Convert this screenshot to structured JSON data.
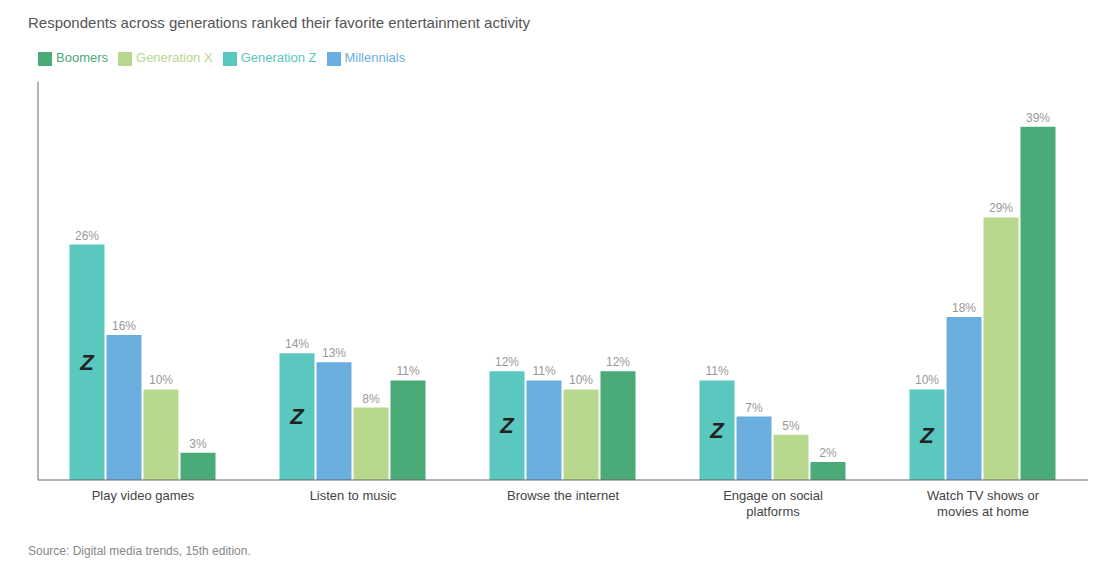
{
  "chart_data": {
    "type": "bar",
    "subtitle": "Respondents across generations ranked their favorite entertainment activity",
    "source": "Source: Digital media trends, 15th edition.",
    "categories": [
      "Play video games",
      "Listen to music",
      "Browse the internet",
      "Engage on social\nplatforms",
      "Watch TV shows or\nmovies at home"
    ],
    "series": [
      {
        "name": "Generation Z",
        "color": "#5bc8c0",
        "values": [
          26,
          14,
          12,
          11,
          10
        ],
        "value_labels": [
          "26%",
          "14%",
          "12%",
          "11%",
          "10%"
        ]
      },
      {
        "name": "Millennials",
        "color": "#6aaee0",
        "values": [
          16,
          13,
          11,
          7,
          18
        ],
        "value_labels": [
          "16%",
          "13%",
          "11%",
          "7%",
          "18%"
        ]
      },
      {
        "name": "Generation X",
        "color": "#b8d98d",
        "values": [
          10,
          8,
          10,
          5,
          29
        ],
        "value_labels": [
          "10%",
          "8%",
          "10%",
          "5%",
          "29%"
        ]
      },
      {
        "name": "Boomers",
        "color": "#4aaa78",
        "values": [
          3,
          11,
          12,
          2,
          39
        ],
        "value_labels": [
          "3%",
          "11%",
          "12%",
          "2%",
          "39%"
        ]
      }
    ],
    "annotations": [
      {
        "text": "Z",
        "series": "Generation Z"
      }
    ],
    "ylim": [
      0,
      44
    ],
    "grid": false,
    "legend": "upper left",
    "data_labels": true,
    "tick_labels": "x"
  }
}
